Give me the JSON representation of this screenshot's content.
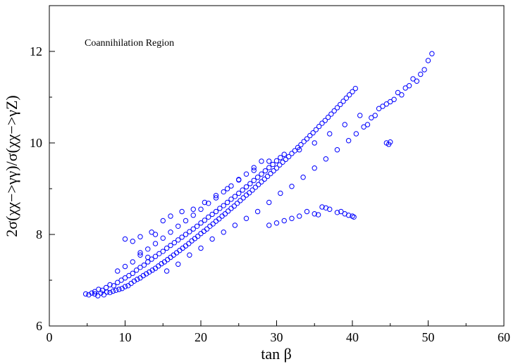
{
  "chart_data": {
    "type": "scatter",
    "title": "",
    "annotation": "Coannihilation Region",
    "xlabel": "tan β",
    "ylabel": "2σ(χχ−>γγ)/σ(χχ−>γZ)",
    "xlim": [
      0,
      60
    ],
    "ylim": [
      6,
      13
    ],
    "xticks": [
      0,
      10,
      20,
      30,
      40,
      50,
      60
    ],
    "yticks": [
      6,
      8,
      10,
      12
    ],
    "grid": false,
    "marker": "open-circle",
    "color": "#0000ff",
    "series": [
      {
        "points": [
          [
            4.8,
            6.7
          ],
          [
            5.2,
            6.68
          ],
          [
            5.6,
            6.72
          ],
          [
            6.0,
            6.7
          ],
          [
            6.4,
            6.66
          ],
          [
            6.8,
            6.72
          ],
          [
            7.2,
            6.68
          ],
          [
            7.6,
            6.74
          ],
          [
            8.0,
            6.73
          ],
          [
            8.4,
            6.76
          ],
          [
            8.8,
            6.78
          ],
          [
            9.2,
            6.8
          ],
          [
            9.6,
            6.82
          ],
          [
            10.0,
            6.86
          ],
          [
            10.4,
            6.88
          ],
          [
            10.8,
            6.93
          ],
          [
            11.2,
            6.98
          ],
          [
            11.6,
            7.02
          ],
          [
            12.0,
            7.05
          ],
          [
            12.4,
            7.1
          ],
          [
            12.8,
            7.14
          ],
          [
            13.2,
            7.18
          ],
          [
            13.6,
            7.22
          ],
          [
            14.0,
            7.26
          ],
          [
            14.4,
            7.31
          ],
          [
            14.8,
            7.36
          ],
          [
            15.2,
            7.4
          ],
          [
            15.6,
            7.45
          ],
          [
            16.0,
            7.5
          ],
          [
            16.4,
            7.55
          ],
          [
            16.8,
            7.6
          ],
          [
            17.2,
            7.65
          ],
          [
            17.6,
            7.7
          ],
          [
            18.0,
            7.75
          ],
          [
            18.4,
            7.8
          ],
          [
            18.8,
            7.86
          ],
          [
            19.2,
            7.91
          ],
          [
            19.6,
            7.96
          ],
          [
            20.0,
            8.02
          ],
          [
            20.4,
            8.07
          ],
          [
            20.8,
            8.12
          ],
          [
            21.2,
            8.18
          ],
          [
            21.6,
            8.23
          ],
          [
            22.0,
            8.29
          ],
          [
            22.4,
            8.34
          ],
          [
            22.8,
            8.4
          ],
          [
            23.2,
            8.45
          ],
          [
            23.6,
            8.51
          ],
          [
            24.0,
            8.57
          ],
          [
            24.4,
            8.62
          ],
          [
            24.8,
            8.68
          ],
          [
            25.2,
            8.74
          ],
          [
            25.6,
            8.8
          ],
          [
            26.0,
            8.86
          ],
          [
            26.4,
            8.91
          ],
          [
            26.8,
            8.97
          ],
          [
            27.2,
            9.03
          ],
          [
            27.6,
            9.09
          ],
          [
            28.0,
            9.15
          ],
          [
            28.4,
            9.21
          ],
          [
            28.8,
            9.27
          ],
          [
            29.2,
            9.33
          ],
          [
            29.6,
            9.39
          ],
          [
            30.0,
            9.45
          ],
          [
            30.4,
            9.52
          ],
          [
            30.8,
            9.58
          ],
          [
            31.2,
            9.64
          ],
          [
            31.6,
            9.7
          ],
          [
            32.0,
            9.77
          ],
          [
            32.4,
            9.83
          ],
          [
            32.8,
            9.9
          ],
          [
            33.2,
            9.96
          ],
          [
            33.6,
            10.03
          ],
          [
            34.0,
            10.09
          ],
          [
            34.4,
            10.16
          ],
          [
            34.8,
            10.22
          ],
          [
            35.2,
            10.29
          ],
          [
            35.6,
            10.36
          ],
          [
            36.0,
            10.43
          ],
          [
            36.4,
            10.49
          ],
          [
            36.8,
            10.56
          ],
          [
            37.2,
            10.63
          ],
          [
            37.6,
            10.7
          ],
          [
            38.0,
            10.77
          ],
          [
            38.4,
            10.84
          ],
          [
            38.8,
            10.91
          ],
          [
            39.2,
            10.98
          ],
          [
            39.6,
            11.05
          ],
          [
            40.0,
            11.12
          ],
          [
            40.4,
            11.19
          ],
          [
            6.0,
            6.75
          ],
          [
            6.5,
            6.8
          ],
          [
            7.0,
            6.78
          ],
          [
            7.5,
            6.84
          ],
          [
            8.0,
            6.9
          ],
          [
            8.5,
            6.88
          ],
          [
            9.0,
            6.95
          ],
          [
            9.5,
            7.0
          ],
          [
            10.0,
            7.05
          ],
          [
            10.5,
            7.1
          ],
          [
            11.0,
            7.15
          ],
          [
            11.5,
            7.22
          ],
          [
            12.0,
            7.28
          ],
          [
            12.5,
            7.33
          ],
          [
            13.0,
            7.4
          ],
          [
            13.5,
            7.46
          ],
          [
            14.0,
            7.52
          ],
          [
            14.5,
            7.58
          ],
          [
            15.0,
            7.63
          ],
          [
            15.5,
            7.7
          ],
          [
            16.0,
            7.76
          ],
          [
            16.5,
            7.82
          ],
          [
            17.0,
            7.88
          ],
          [
            17.5,
            7.94
          ],
          [
            18.0,
            8.0
          ],
          [
            18.5,
            8.06
          ],
          [
            19.0,
            8.12
          ],
          [
            19.5,
            8.18
          ],
          [
            20.0,
            8.25
          ],
          [
            20.5,
            8.31
          ],
          [
            21.0,
            8.38
          ],
          [
            21.5,
            8.44
          ],
          [
            22.0,
            8.5
          ],
          [
            22.5,
            8.57
          ],
          [
            23.0,
            8.63
          ],
          [
            23.5,
            8.7
          ],
          [
            24.0,
            8.77
          ],
          [
            24.5,
            8.83
          ],
          [
            25.0,
            8.9
          ],
          [
            25.5,
            8.97
          ],
          [
            26.0,
            9.04
          ],
          [
            26.5,
            9.11
          ],
          [
            27.0,
            9.18
          ],
          [
            27.5,
            9.25
          ],
          [
            28.0,
            9.32
          ],
          [
            28.5,
            9.39
          ],
          [
            29.0,
            9.46
          ],
          [
            29.5,
            9.53
          ],
          [
            30.0,
            9.61
          ],
          [
            30.5,
            9.68
          ],
          [
            9.0,
            7.2
          ],
          [
            10.0,
            7.3
          ],
          [
            11.0,
            7.4
          ],
          [
            12.0,
            7.55
          ],
          [
            13.0,
            7.68
          ],
          [
            14.0,
            7.8
          ],
          [
            15.0,
            7.92
          ],
          [
            16.0,
            8.05
          ],
          [
            17.0,
            8.18
          ],
          [
            18.0,
            8.3
          ],
          [
            19.0,
            8.42
          ],
          [
            20.0,
            8.55
          ],
          [
            21.0,
            8.68
          ],
          [
            22.0,
            8.8
          ],
          [
            23.0,
            8.93
          ],
          [
            24.0,
            9.06
          ],
          [
            25.0,
            9.19
          ],
          [
            26.0,
            9.32
          ],
          [
            27.0,
            9.46
          ],
          [
            28.0,
            9.6
          ],
          [
            10.0,
            7.9
          ],
          [
            11.0,
            7.85
          ],
          [
            12.0,
            7.95
          ],
          [
            13.5,
            8.05
          ],
          [
            15.0,
            8.3
          ],
          [
            16.0,
            8.4
          ],
          [
            17.5,
            8.5
          ],
          [
            19.0,
            8.55
          ],
          [
            20.5,
            8.7
          ],
          [
            22.0,
            8.85
          ],
          [
            23.5,
            9.0
          ],
          [
            25.0,
            9.2
          ],
          [
            27.0,
            9.4
          ],
          [
            29.0,
            9.6
          ],
          [
            31.0,
            9.75
          ],
          [
            33.0,
            9.85
          ],
          [
            35.0,
            10.0
          ],
          [
            37.0,
            10.2
          ],
          [
            39.0,
            10.4
          ],
          [
            41.0,
            10.6
          ],
          [
            42.0,
            10.4
          ],
          [
            43.0,
            10.6
          ],
          [
            44.0,
            10.8
          ],
          [
            45.0,
            10.9
          ],
          [
            46.0,
            11.1
          ],
          [
            47.0,
            11.2
          ],
          [
            48.0,
            11.4
          ],
          [
            49.0,
            11.5
          ],
          [
            50.0,
            11.8
          ],
          [
            50.5,
            11.95
          ],
          [
            44.5,
            10.0
          ],
          [
            44.8,
            9.97
          ],
          [
            45.0,
            10.02
          ],
          [
            34.0,
            8.5
          ],
          [
            35.0,
            8.45
          ],
          [
            36.0,
            8.6
          ],
          [
            37.0,
            8.55
          ],
          [
            38.0,
            8.48
          ],
          [
            39.0,
            8.45
          ],
          [
            40.0,
            8.4
          ],
          [
            40.2,
            8.38
          ],
          [
            39.5,
            8.42
          ],
          [
            38.5,
            8.5
          ],
          [
            36.5,
            8.58
          ],
          [
            35.5,
            8.43
          ],
          [
            33.0,
            8.4
          ],
          [
            32.0,
            8.35
          ],
          [
            31.0,
            8.3
          ],
          [
            30.0,
            8.25
          ],
          [
            29.0,
            8.2
          ],
          [
            14.0,
            8.0
          ],
          [
            12.0,
            7.6
          ],
          [
            13.0,
            7.5
          ],
          [
            15.5,
            7.2
          ],
          [
            17.0,
            7.35
          ],
          [
            18.5,
            7.55
          ],
          [
            20.0,
            7.7
          ],
          [
            21.5,
            7.9
          ],
          [
            23.0,
            8.05
          ],
          [
            24.5,
            8.2
          ],
          [
            26.0,
            8.35
          ],
          [
            27.5,
            8.5
          ],
          [
            29.0,
            8.7
          ],
          [
            30.5,
            8.9
          ],
          [
            32.0,
            9.05
          ],
          [
            33.5,
            9.25
          ],
          [
            35.0,
            9.45
          ],
          [
            36.5,
            9.65
          ],
          [
            38.0,
            9.85
          ],
          [
            39.5,
            10.05
          ],
          [
            40.5,
            10.2
          ],
          [
            41.5,
            10.35
          ],
          [
            42.5,
            10.55
          ],
          [
            43.5,
            10.75
          ],
          [
            44.5,
            10.85
          ],
          [
            45.5,
            10.95
          ],
          [
            46.5,
            11.05
          ],
          [
            47.5,
            11.25
          ],
          [
            48.5,
            11.35
          ],
          [
            49.5,
            11.6
          ]
        ]
      }
    ]
  }
}
